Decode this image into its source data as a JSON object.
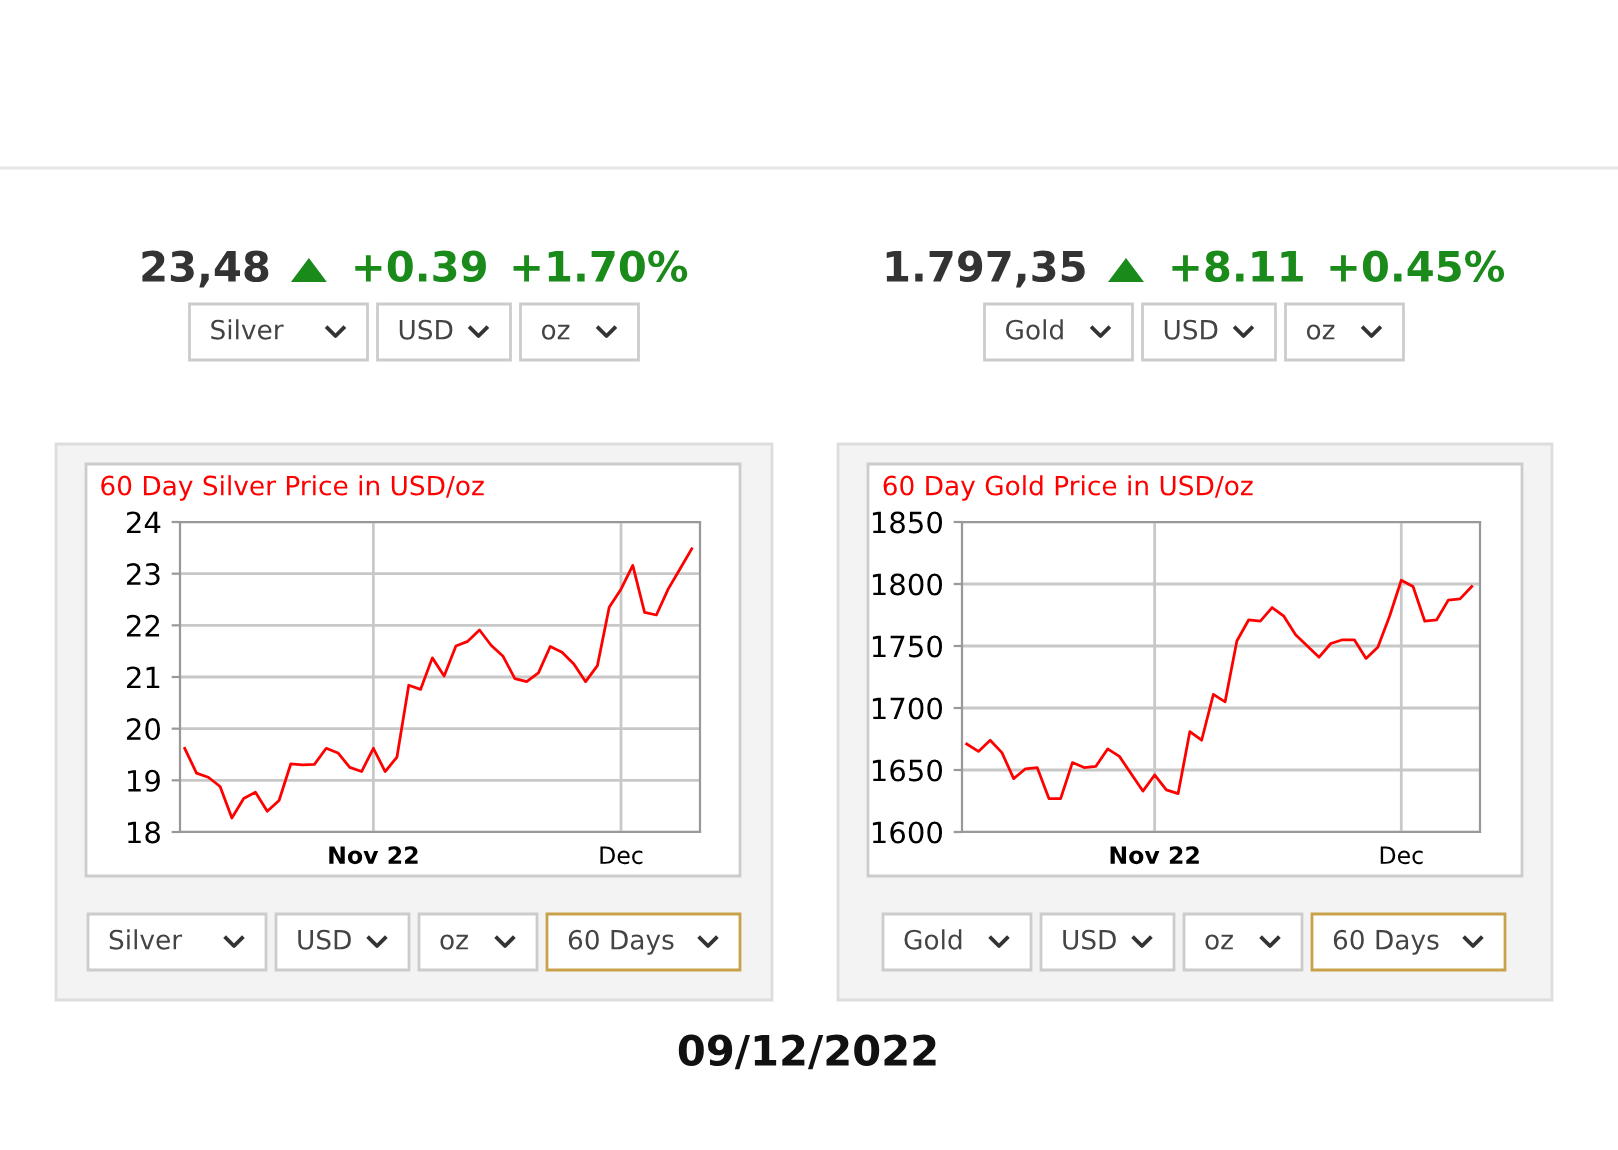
{
  "chart_data": [
    {
      "type": "other",
      "annotations": [
        "23,48",
        "+0.39",
        "+1.70%",
        "Silver",
        "USD",
        "oz"
      ]
    },
    {
      "type": "other",
      "annotations": [
        "1.797,35",
        "+8.11",
        "+0.45%",
        "Gold",
        "USD",
        "oz"
      ]
    },
    {
      "type": "line",
      "title": "60 Day Silver Price in USD/oz",
      "color": "#ff0000",
      "grid": true,
      "categories": [
        null,
        null,
        null,
        null,
        null,
        null,
        null,
        null,
        null,
        null,
        null,
        null,
        null,
        null,
        null,
        null,
        "Nov 22",
        null,
        null,
        null,
        null,
        null,
        null,
        null,
        null,
        null,
        null,
        null,
        null,
        null,
        null,
        null,
        null,
        null,
        null,
        null,
        null,
        "Dec",
        null,
        null,
        null,
        null,
        null,
        null
      ],
      "values": [
        19.62,
        19.14,
        19.06,
        18.88,
        18.27,
        18.65,
        18.77,
        18.4,
        18.61,
        19.32,
        19.3,
        19.31,
        19.62,
        19.53,
        19.25,
        19.17,
        19.62,
        19.17,
        19.45,
        20.84,
        20.76,
        21.37,
        21.02,
        21.6,
        21.69,
        21.91,
        21.61,
        21.4,
        20.97,
        20.91,
        21.08,
        21.59,
        21.48,
        21.25,
        20.91,
        21.22,
        22.35,
        22.7,
        23.16,
        22.25,
        22.2,
        22.7,
        23.09,
        23.48
      ],
      "ylim": [
        18,
        24
      ],
      "yticks": [
        18,
        19,
        20,
        21,
        22,
        23,
        24
      ],
      "annotations": [
        "Silver",
        "USD",
        "oz",
        "60 Days"
      ]
    },
    {
      "type": "line",
      "title": "60 Day Gold Price in USD/oz",
      "color": "#ff0000",
      "grid": true,
      "categories": [
        null,
        null,
        null,
        null,
        null,
        null,
        null,
        null,
        null,
        null,
        null,
        null,
        null,
        null,
        null,
        null,
        "Nov 22",
        null,
        null,
        null,
        null,
        null,
        null,
        null,
        null,
        null,
        null,
        null,
        null,
        null,
        null,
        null,
        null,
        null,
        null,
        null,
        null,
        "Dec",
        null,
        null,
        null,
        null,
        null,
        null
      ],
      "values": [
        1671,
        1665,
        1674,
        1664,
        1643,
        1651,
        1652,
        1627,
        1627,
        1656,
        1652,
        1653,
        1667,
        1661,
        1647,
        1633,
        1646,
        1634,
        1631,
        1681,
        1674,
        1711,
        1705,
        1754,
        1771,
        1770,
        1781,
        1774,
        1759,
        1750,
        1741,
        1752,
        1755,
        1755,
        1740,
        1749,
        1774,
        1803,
        1798,
        1770,
        1771,
        1787,
        1788,
        1798
      ],
      "ylim": [
        1600,
        1850
      ],
      "yticks": [
        1600,
        1650,
        1700,
        1750,
        1800,
        1850
      ],
      "annotations": [
        "Gold",
        "USD",
        "oz",
        "60 Days"
      ]
    },
    {
      "type": "other",
      "title": "09/12/2022"
    }
  ]
}
